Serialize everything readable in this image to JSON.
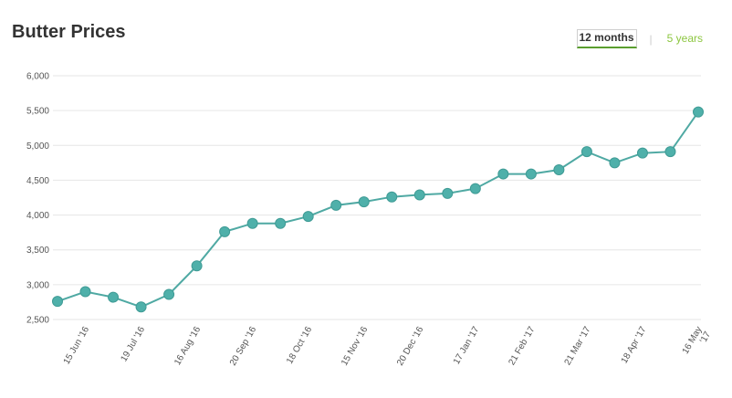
{
  "header": {
    "title": "Butter Prices",
    "tabs": [
      {
        "label": "12 months",
        "active": true
      },
      {
        "label": "5 years",
        "active": false
      }
    ],
    "separator": "|"
  },
  "colors": {
    "line": "#4fa9a3",
    "marker": "#4fb0aa",
    "accent": "#8cc63f",
    "grid": "#e6e6e6"
  },
  "chart_data": {
    "type": "line",
    "title": "Butter Prices",
    "xlabel": "",
    "ylabel": "",
    "ylim": [
      2500,
      6000
    ],
    "yticks": [
      "2,500",
      "3,000",
      "3,500",
      "4,000",
      "4,500",
      "5,000",
      "5,500",
      "6,000"
    ],
    "ytick_values": [
      2500,
      3000,
      3500,
      4000,
      4500,
      5000,
      5500,
      6000
    ],
    "grid": true,
    "xtick_labels": [
      {
        "label": "15 Jun '16",
        "index": 1
      },
      {
        "label": "19 Jul '16",
        "index": 3
      },
      {
        "label": "16 Aug '16",
        "index": 5
      },
      {
        "label": "20 Sep '16",
        "index": 7
      },
      {
        "label": "18 Oct '16",
        "index": 9
      },
      {
        "label": "15 Nov '16",
        "index": 11
      },
      {
        "label": "20 Dec '16",
        "index": 13
      },
      {
        "label": "17 Jan '17",
        "index": 15
      },
      {
        "label": "21 Feb '17",
        "index": 17
      },
      {
        "label": "21 Mar '17",
        "index": 19
      },
      {
        "label": "18 Apr '17",
        "index": 21
      },
      {
        "label": "16 May '17",
        "index": 23
      }
    ],
    "series": [
      {
        "values": [
          2760,
          2900,
          2820,
          2680,
          2860,
          3270,
          3760,
          3880,
          3880,
          3980,
          4140,
          4190,
          4260,
          4290,
          4310,
          4380,
          4590,
          4590,
          4650,
          4910,
          4750,
          4890,
          4910,
          5480
        ]
      }
    ]
  }
}
